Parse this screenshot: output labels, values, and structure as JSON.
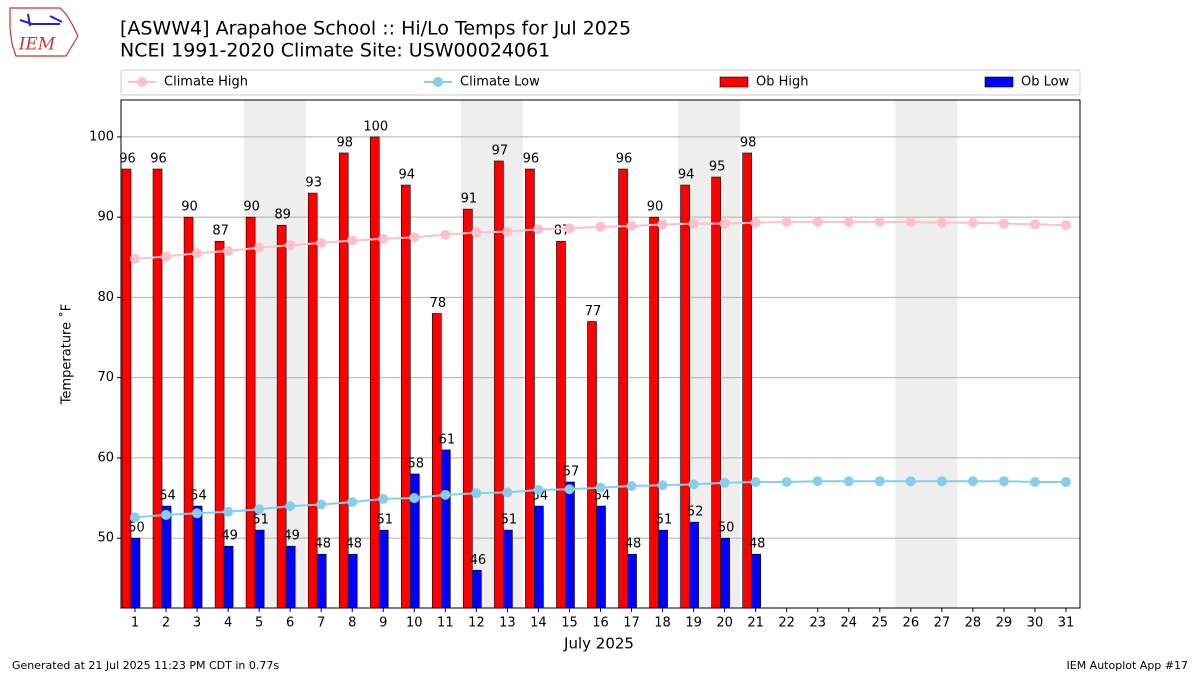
{
  "chart_data": {
    "type": "bar_line",
    "title": "[ASWW4] Arapahoe School :: Hi/Lo Temps for Jul 2025",
    "subtitle": "NCEI 1991-2020 Climate Site: USW00024061",
    "xlabel": "July 2025",
    "ylabel": "Temperature ˚F",
    "categories": [
      "1",
      "2",
      "3",
      "4",
      "5",
      "6",
      "7",
      "8",
      "9",
      "10",
      "11",
      "12",
      "13",
      "14",
      "15",
      "16",
      "17",
      "18",
      "19",
      "20",
      "21",
      "22",
      "23",
      "24",
      "25",
      "26",
      "27",
      "28",
      "29",
      "30",
      "31"
    ],
    "series": [
      {
        "name": "Climate High",
        "kind": "line",
        "color": "#ffc0cb",
        "values": [
          84.8,
          85.1,
          85.5,
          85.8,
          86.2,
          86.5,
          86.8,
          87.1,
          87.3,
          87.5,
          87.8,
          88.1,
          88.2,
          88.5,
          88.6,
          88.8,
          88.9,
          89.1,
          89.2,
          89.2,
          89.3,
          89.4,
          89.4,
          89.4,
          89.4,
          89.4,
          89.3,
          89.3,
          89.2,
          89.1,
          89.0
        ]
      },
      {
        "name": "Climate Low",
        "kind": "line",
        "color": "#87ceeb",
        "values": [
          52.6,
          52.9,
          53.1,
          53.3,
          53.6,
          54.0,
          54.2,
          54.5,
          54.9,
          55.0,
          55.4,
          55.6,
          55.7,
          56.0,
          56.1,
          56.3,
          56.5,
          56.6,
          56.7,
          56.9,
          57.0,
          57.0,
          57.1,
          57.1,
          57.1,
          57.1,
          57.1,
          57.1,
          57.1,
          57.0,
          57.0
        ]
      },
      {
        "name": "Ob High",
        "kind": "bar",
        "color": "#ff0000",
        "values": [
          96,
          96,
          90,
          87,
          90,
          89,
          93,
          98,
          100,
          94,
          78,
          91,
          97,
          96,
          87,
          77,
          96,
          90,
          94,
          95,
          98,
          null,
          null,
          null,
          null,
          null,
          null,
          null,
          null,
          null,
          null
        ]
      },
      {
        "name": "Ob Low",
        "kind": "bar",
        "color": "#0000ff",
        "values": [
          50,
          54,
          54,
          49,
          51,
          49,
          48,
          48,
          51,
          58,
          61,
          46,
          51,
          54,
          57,
          54,
          48,
          51,
          52,
          50,
          48,
          null,
          null,
          null,
          null,
          null,
          null,
          null,
          null,
          null,
          null
        ]
      }
    ],
    "shaded_days": [
      [
        5,
        6
      ],
      [
        12,
        13
      ],
      [
        19,
        20
      ],
      [
        26,
        27
      ]
    ],
    "ylim": [
      41.3,
      104.6
    ],
    "yticks": [
      50,
      60,
      70,
      80,
      90,
      100
    ],
    "grid": true,
    "legend": "top"
  },
  "logo": "IEM",
  "footer": {
    "left": "Generated at 21 Jul 2025 11:23 PM CDT in 0.77s",
    "right": "IEM Autoplot App #17"
  }
}
